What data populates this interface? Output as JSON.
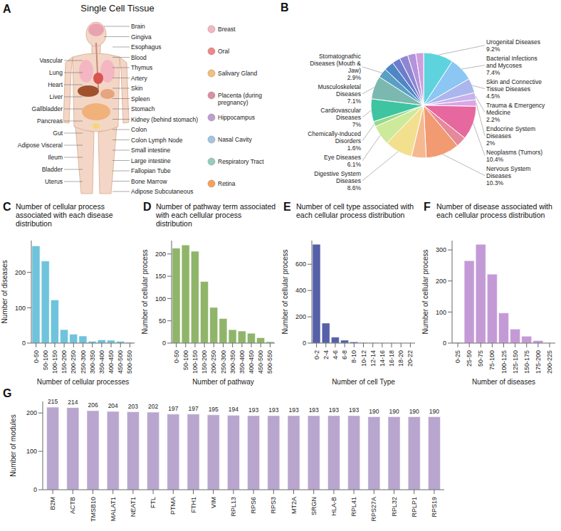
{
  "panel_a": {
    "letter": "A",
    "title": "Single Cell Tissue",
    "left_labels": [
      "Vascular",
      "Lung",
      "Heart",
      "Liver",
      "Gallbladder",
      "Pancreas",
      "Gut",
      "Adipose Visceral",
      "Ileum",
      "Bladder",
      "Uterus"
    ],
    "right_labels": [
      "Brain",
      "Gingiva",
      "Esophagus",
      "Blood",
      "Thymus",
      "Artery",
      "Skin",
      "Spleen",
      "Stomach",
      "Kidney (behind stomach)",
      "Colon",
      "Colon Lymph Node",
      "Small intestine",
      "Large intestine",
      "Fallopian Tube",
      "Bone Marrow",
      "Adipose Subcutaneous"
    ],
    "organ_labels": [
      "Breast",
      "Oral",
      "Salivary Gland",
      "Placenta (during pregnancy)",
      "Hippocampus",
      "Nasal Cavity",
      "Respiratory Tract",
      "Retina"
    ]
  },
  "chart_data": [
    {
      "panel": "B",
      "type": "pie",
      "labels": [
        "Urogenital Diseases",
        "Bacterial Infections and Mycoses",
        "Skin and Connective Tissue Diseases",
        "Trauma & Emergency Medicine",
        "Endocrine System Diseases",
        "Neoplasms (Tumors)",
        null,
        "Nervous System Diseases",
        null,
        "Digestive System Diseases",
        "Eye Diseases",
        "Chemically-Induced Disorders",
        "Cardiovascular Diseases",
        "Musculoskeletal Diseases",
        "Stomatognathic Diseases (Mouth & Jaw)",
        null,
        null,
        null,
        null,
        null
      ],
      "values": [
        9.2,
        7.4,
        4.5,
        2.2,
        2,
        10.4,
        3.2,
        10.3,
        4.5,
        8.6,
        6.1,
        1.6,
        7,
        7.1,
        2.9,
        3,
        2.5,
        2.6,
        2.5,
        2.4
      ],
      "value_labels": [
        "9.2%",
        "7.4%",
        "4.5%",
        "2.2%",
        "2%",
        "10.4%",
        null,
        "10.3%",
        null,
        "8.6%",
        "6.1%",
        "1.6%",
        "7%",
        "7.1%",
        "2.9%",
        null,
        null,
        null,
        null,
        null
      ],
      "colors": [
        "#5ed3de",
        "#8cc6f2",
        "#aab6ee",
        "#c6b2ec",
        "#d9a6e6",
        "#e7679f",
        "#e48a9a",
        "#f29a72",
        "#f6b98f",
        "#f2e08f",
        "#cde99a",
        "#98d98a",
        "#3ec4a0",
        "#7bb8b0",
        "#5a9fc4",
        "#4f86c6",
        "#6d7ccc",
        "#8f86d2",
        "#b393da",
        "#cf9de0"
      ],
      "data_labels": true
    },
    {
      "panel": "C",
      "type": "bar",
      "title": "Number of cellular process associated with each disease distribution",
      "xlabel": "Number of cellular processes",
      "ylabel": "Number of diseases",
      "categories": [
        "0-50",
        "50-100",
        "100-150",
        "150-200",
        "200-250",
        "250-300",
        "300-350",
        "350-400",
        "400-450",
        "450-500",
        "500-550"
      ],
      "values": [
        275,
        232,
        122,
        38,
        25,
        20,
        5,
        9,
        8,
        5,
        2
      ],
      "color": "#6fc3dc",
      "ylim": [
        0,
        290
      ],
      "yticks": [
        0,
        100,
        200
      ]
    },
    {
      "panel": "D",
      "type": "bar",
      "title": "Number of pathway term associated with each cellular process distribution",
      "xlabel": "Number of pathway",
      "ylabel": "Number of cellular process",
      "categories": [
        "0-50",
        "50-100",
        "100-150",
        "150-200",
        "200-250",
        "250-300",
        "300-350",
        "350-400",
        "400-450",
        "450-500",
        "500-550"
      ],
      "values": [
        213,
        220,
        206,
        138,
        80,
        55,
        30,
        27,
        22,
        12,
        3
      ],
      "color": "#8fb56a",
      "ylim": [
        0,
        230
      ],
      "yticks": [
        0,
        50,
        100,
        150,
        200
      ]
    },
    {
      "panel": "E",
      "type": "bar",
      "title": "Number of cell type associated with each cellular process distribution",
      "xlabel": "Number of cell Type",
      "ylabel": "Number of cellular process",
      "categories": [
        "0-2",
        "2-4",
        "4-6",
        "6-8",
        "8-10",
        "10-12",
        "12-14",
        "14-16",
        "16-18",
        "18-20",
        "20-22"
      ],
      "values": [
        752,
        152,
        45,
        22,
        9,
        3,
        1,
        0,
        0,
        0,
        0
      ],
      "color": "#5560a8",
      "ylim": [
        0,
        780
      ],
      "yticks": [
        0,
        200,
        400,
        600
      ]
    },
    {
      "panel": "F",
      "type": "bar",
      "title": "Number of disease associated with each cellular process distribution",
      "xlabel": "Number of diseases",
      "ylabel": "Number of cellular process",
      "categories": [
        "0-25",
        "25-50",
        "50-75",
        "75-100",
        "100-125",
        "125-150",
        "150-175",
        "175-200",
        "200-225"
      ],
      "values": [
        2,
        265,
        318,
        222,
        97,
        45,
        22,
        8,
        0
      ],
      "color": "#c49ad6",
      "ylim": [
        0,
        330
      ],
      "yticks": [
        0,
        100,
        200,
        300
      ]
    },
    {
      "panel": "G",
      "type": "bar",
      "ylabel": "Number of modules",
      "categories": [
        "B2M",
        "ACTB",
        "TMSB10",
        "MALAT1",
        "NEAT1",
        "FTL",
        "PTMA",
        "FTH1",
        "VIM",
        "RPL13",
        "RPS6",
        "RPS3",
        "MT2A",
        "SRGN",
        "HLA-B",
        "RPL41",
        "RPS27A",
        "RPL32",
        "RPLP1",
        "RPS19"
      ],
      "values": [
        215,
        214,
        206,
        204,
        203,
        202,
        197,
        197,
        195,
        194,
        193,
        193,
        193,
        193,
        193,
        193,
        190,
        190,
        190,
        190
      ],
      "color": "#b9a6cf",
      "ylim": [
        0,
        230
      ],
      "yticks": [
        0,
        100,
        200
      ],
      "data_labels": true
    }
  ]
}
